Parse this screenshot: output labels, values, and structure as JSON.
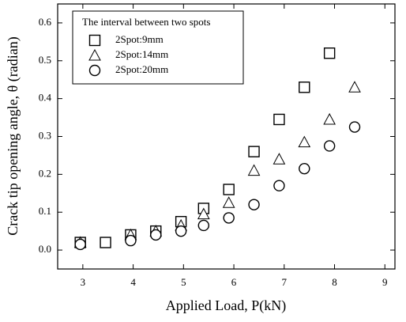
{
  "chart_data": {
    "type": "scatter",
    "xlabel": "Applied Load, P(kN)",
    "ylabel": "Crack tip opening angle, θ (radian)",
    "legend_title": "The interval between two spots",
    "legend": "upper left",
    "grid": false,
    "xlim": [
      2.5,
      9.2
    ],
    "xticks": [
      3,
      4,
      5,
      6,
      7,
      8,
      9
    ],
    "ylim": [
      -0.05,
      0.65
    ],
    "yticks": [
      {
        "value": 0,
        "label": "0.0"
      },
      0.1,
      0.2,
      0.3,
      0.4,
      0.5,
      0.6
    ],
    "series": [
      {
        "name": "2Spot:9mm",
        "color": "#000000",
        "marker": "square",
        "x": [
          2.95,
          3.45,
          3.95,
          4.45,
          4.95,
          5.4,
          5.9,
          6.4,
          6.9,
          7.4,
          7.9
        ],
        "values": [
          0.02,
          0.02,
          0.04,
          0.05,
          0.075,
          0.11,
          0.16,
          0.26,
          0.345,
          0.43,
          0.52
        ]
      },
      {
        "name": "2Spot:14mm",
        "color": "#000000",
        "marker": "triangle",
        "x": [
          2.95,
          3.95,
          4.45,
          4.95,
          5.4,
          5.9,
          6.4,
          6.9,
          7.4,
          7.9,
          8.4
        ],
        "values": [
          0.02,
          0.04,
          0.05,
          0.065,
          0.095,
          0.125,
          0.21,
          0.24,
          0.285,
          0.345,
          0.43
        ]
      },
      {
        "name": "2Spot:20mm",
        "color": "#000000",
        "marker": "circle",
        "x": [
          2.95,
          3.95,
          4.45,
          4.95,
          5.4,
          5.9,
          6.4,
          6.9,
          7.4,
          7.9,
          8.4
        ],
        "values": [
          0.015,
          0.025,
          0.04,
          0.05,
          0.065,
          0.085,
          0.12,
          0.17,
          0.215,
          0.275,
          0.325
        ]
      }
    ]
  }
}
